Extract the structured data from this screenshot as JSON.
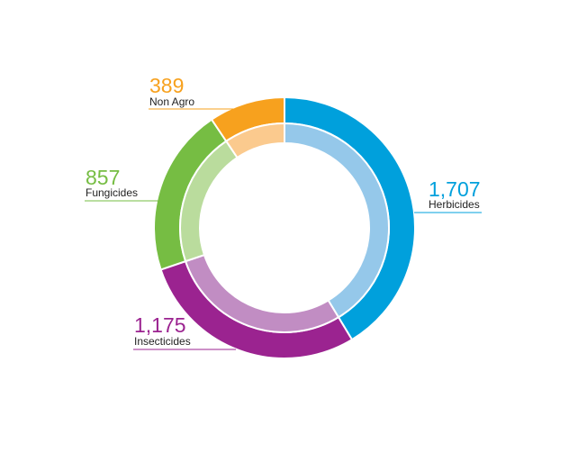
{
  "chart_data": {
    "type": "pie",
    "categories": [
      "Herbicides",
      "Insecticides",
      "Fungicides",
      "Non Agro"
    ],
    "values": [
      1707,
      1175,
      857,
      389
    ],
    "value_labels": [
      "1,707",
      "1,175",
      "857",
      "389"
    ],
    "colors": [
      "#00a0dc",
      "#9b2390",
      "#76bd43",
      "#f7a11e"
    ],
    "inner_colors": [
      "#95c8ea",
      "#c18dc3",
      "#badc9d",
      "#fbca8e"
    ],
    "donut": true,
    "title": "",
    "legend": "none"
  }
}
